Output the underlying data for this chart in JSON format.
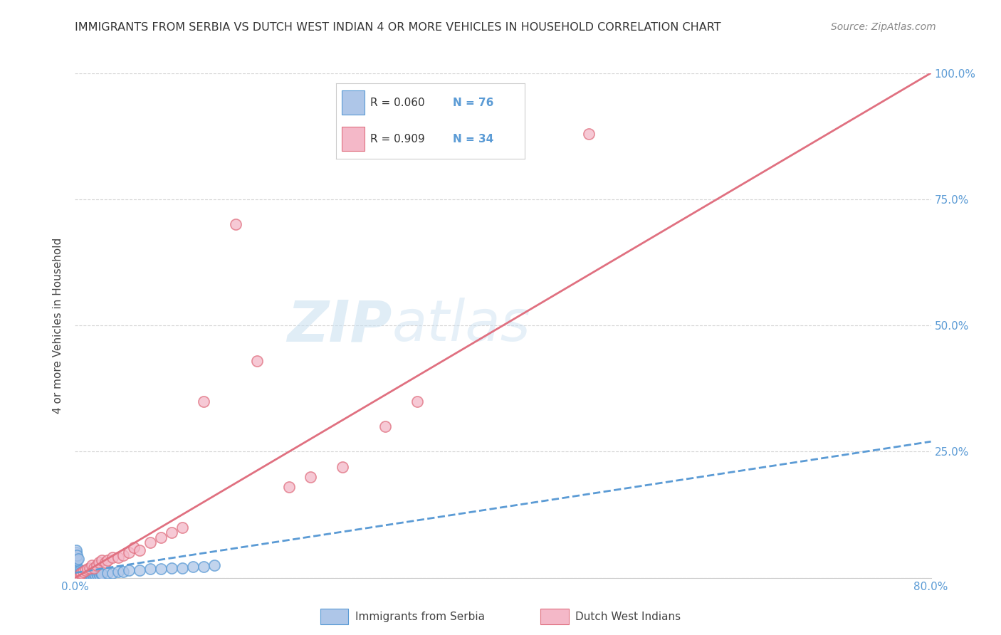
{
  "title": "IMMIGRANTS FROM SERBIA VS DUTCH WEST INDIAN 4 OR MORE VEHICLES IN HOUSEHOLD CORRELATION CHART",
  "source": "Source: ZipAtlas.com",
  "ylabel": "4 or more Vehicles in Household",
  "xlim": [
    0.0,
    0.8
  ],
  "ylim": [
    0.0,
    1.0
  ],
  "xticks": [
    0.0,
    0.1,
    0.2,
    0.3,
    0.4,
    0.5,
    0.6,
    0.7,
    0.8
  ],
  "xticklabels": [
    "0.0%",
    "",
    "",
    "",
    "",
    "",
    "",
    "",
    "80.0%"
  ],
  "yticks": [
    0.0,
    0.25,
    0.5,
    0.75,
    1.0
  ],
  "yticklabels": [
    "",
    "25.0%",
    "50.0%",
    "75.0%",
    "100.0%"
  ],
  "series1_color": "#aec6e8",
  "series1_edge": "#5b9bd5",
  "series2_color": "#f4b8c8",
  "series2_edge": "#e07080",
  "trend1_color": "#5b9bd5",
  "trend2_color": "#e07080",
  "legend_r1": "R = 0.060",
  "legend_n1": "N = 76",
  "legend_r2": "R = 0.909",
  "legend_n2": "N = 34",
  "watermark_zip": "ZIP",
  "watermark_atlas": "atlas",
  "background_color": "#ffffff",
  "plot_bg_color": "#ffffff",
  "grid_color": "#cccccc",
  "label1": "Immigrants from Serbia",
  "label2": "Dutch West Indians",
  "series1_x": [
    0.001,
    0.001,
    0.001,
    0.001,
    0.001,
    0.002,
    0.002,
    0.002,
    0.002,
    0.002,
    0.002,
    0.003,
    0.003,
    0.003,
    0.003,
    0.003,
    0.004,
    0.004,
    0.004,
    0.004,
    0.005,
    0.005,
    0.005,
    0.005,
    0.006,
    0.006,
    0.006,
    0.007,
    0.007,
    0.007,
    0.008,
    0.008,
    0.008,
    0.009,
    0.009,
    0.01,
    0.01,
    0.01,
    0.011,
    0.011,
    0.012,
    0.012,
    0.013,
    0.013,
    0.014,
    0.014,
    0.015,
    0.016,
    0.017,
    0.018,
    0.019,
    0.02,
    0.021,
    0.022,
    0.023,
    0.024,
    0.025,
    0.03,
    0.035,
    0.04,
    0.045,
    0.05,
    0.06,
    0.07,
    0.08,
    0.09,
    0.1,
    0.11,
    0.12,
    0.13,
    0.001,
    0.001,
    0.001,
    0.002,
    0.002,
    0.003
  ],
  "series1_y": [
    0.005,
    0.008,
    0.01,
    0.012,
    0.015,
    0.005,
    0.008,
    0.01,
    0.012,
    0.015,
    0.018,
    0.005,
    0.008,
    0.01,
    0.015,
    0.018,
    0.005,
    0.008,
    0.01,
    0.015,
    0.005,
    0.008,
    0.01,
    0.015,
    0.005,
    0.008,
    0.012,
    0.005,
    0.008,
    0.012,
    0.005,
    0.008,
    0.012,
    0.005,
    0.01,
    0.005,
    0.008,
    0.012,
    0.005,
    0.01,
    0.005,
    0.008,
    0.005,
    0.01,
    0.005,
    0.008,
    0.005,
    0.008,
    0.005,
    0.008,
    0.005,
    0.008,
    0.005,
    0.008,
    0.005,
    0.008,
    0.008,
    0.01,
    0.01,
    0.012,
    0.012,
    0.015,
    0.015,
    0.018,
    0.018,
    0.02,
    0.02,
    0.022,
    0.022,
    0.025,
    0.04,
    0.05,
    0.055,
    0.035,
    0.045,
    0.038
  ],
  "series2_x": [
    0.002,
    0.004,
    0.005,
    0.006,
    0.008,
    0.01,
    0.012,
    0.014,
    0.016,
    0.018,
    0.02,
    0.022,
    0.025,
    0.028,
    0.03,
    0.035,
    0.04,
    0.045,
    0.05,
    0.055,
    0.06,
    0.07,
    0.08,
    0.09,
    0.1,
    0.12,
    0.15,
    0.17,
    0.2,
    0.22,
    0.25,
    0.29,
    0.32,
    0.48
  ],
  "series2_y": [
    0.002,
    0.005,
    0.008,
    0.01,
    0.012,
    0.015,
    0.018,
    0.02,
    0.025,
    0.02,
    0.025,
    0.03,
    0.035,
    0.03,
    0.035,
    0.04,
    0.04,
    0.045,
    0.05,
    0.06,
    0.055,
    0.07,
    0.08,
    0.09,
    0.1,
    0.35,
    0.7,
    0.43,
    0.18,
    0.2,
    0.22,
    0.3,
    0.35,
    0.88
  ],
  "trend1_x0": 0.0,
  "trend1_y0": 0.01,
  "trend1_x1": 0.8,
  "trend1_y1": 0.27,
  "trend2_x0": 0.0,
  "trend2_y0": 0.0,
  "trend2_x1": 0.8,
  "trend2_y1": 1.0
}
